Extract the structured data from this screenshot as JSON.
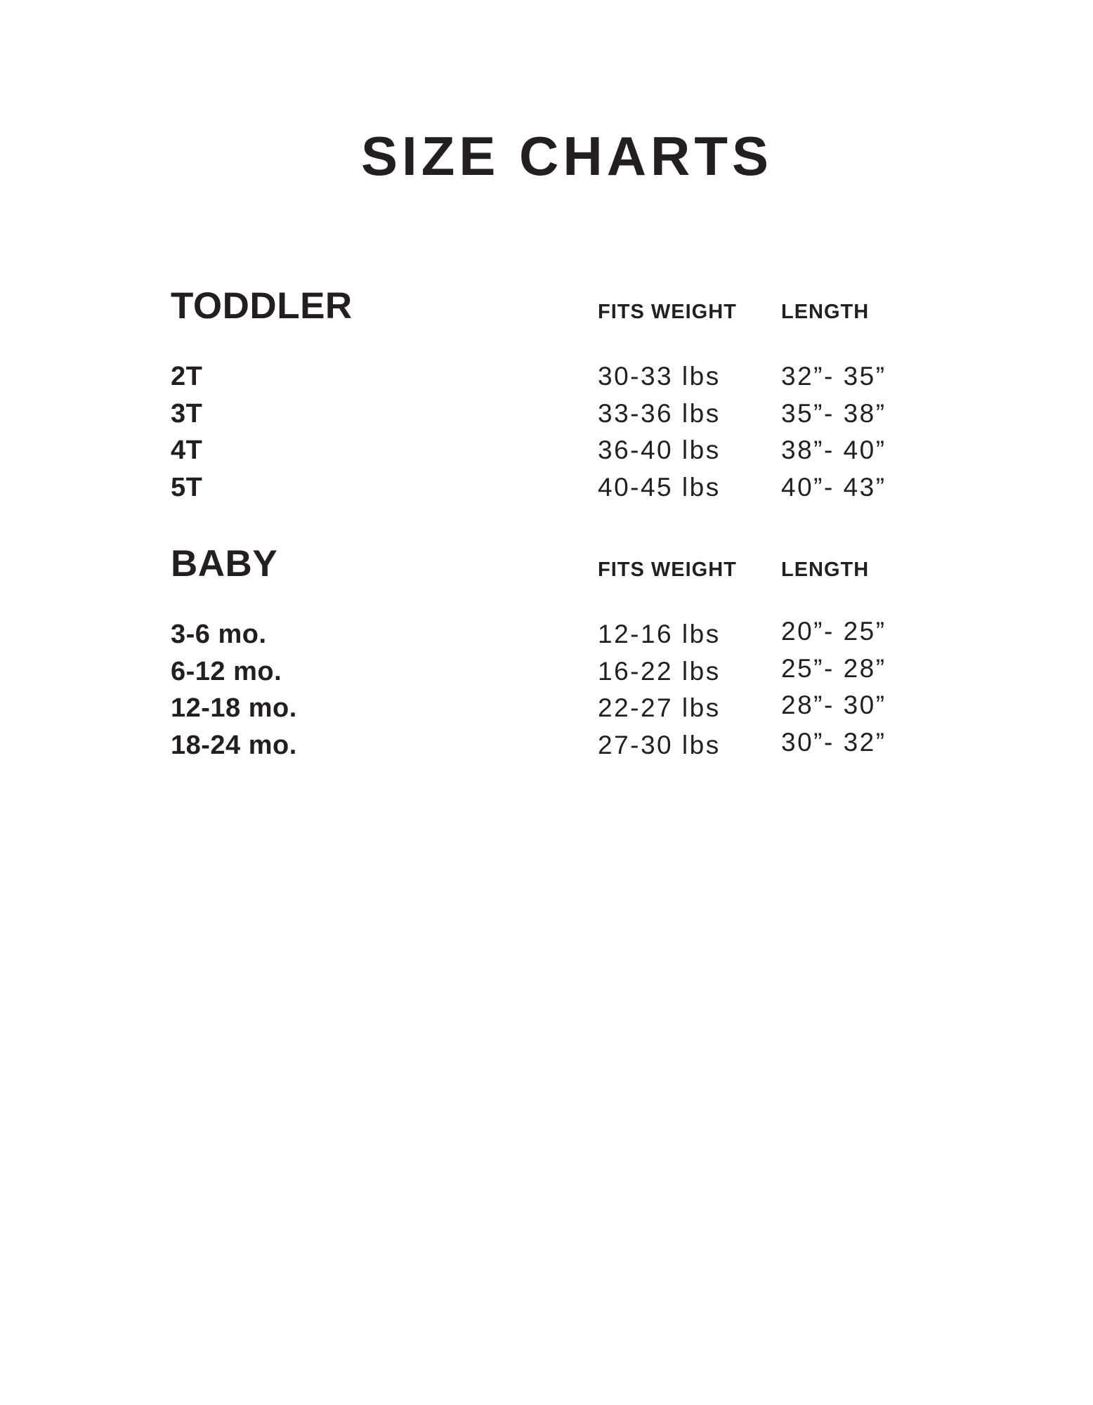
{
  "page_title": "SIZE CHARTS",
  "colors": {
    "text": "#231f20",
    "background": "#ffffff"
  },
  "sections": [
    {
      "name": "TODDLER",
      "col_weight": "FITS WEIGHT",
      "col_length": "LENGTH",
      "rows": [
        {
          "size": "2T",
          "weight": "30-33 lbs",
          "length": "32”- 35”"
        },
        {
          "size": "3T",
          "weight": "33-36 lbs",
          "length": "35”- 38”"
        },
        {
          "size": "4T",
          "weight": "36-40 lbs",
          "length": "38”- 40”"
        },
        {
          "size": "5T",
          "weight": "40-45 lbs",
          "length": "40”- 43”"
        }
      ]
    },
    {
      "name": "BABY",
      "col_weight": "FITS WEIGHT",
      "col_length": "LENGTH",
      "rows": [
        {
          "size": "3-6 mo.",
          "weight": "12-16 lbs",
          "length": "20”- 25”"
        },
        {
          "size": "6-12 mo.",
          "weight": "16-22 lbs",
          "length": "25”- 28”"
        },
        {
          "size": "12-18 mo.",
          "weight": "22-27 lbs",
          "length": "28”- 30”"
        },
        {
          "size": "18-24 mo.",
          "weight": "27-30 lbs",
          "length": "30”- 32”"
        }
      ]
    }
  ]
}
